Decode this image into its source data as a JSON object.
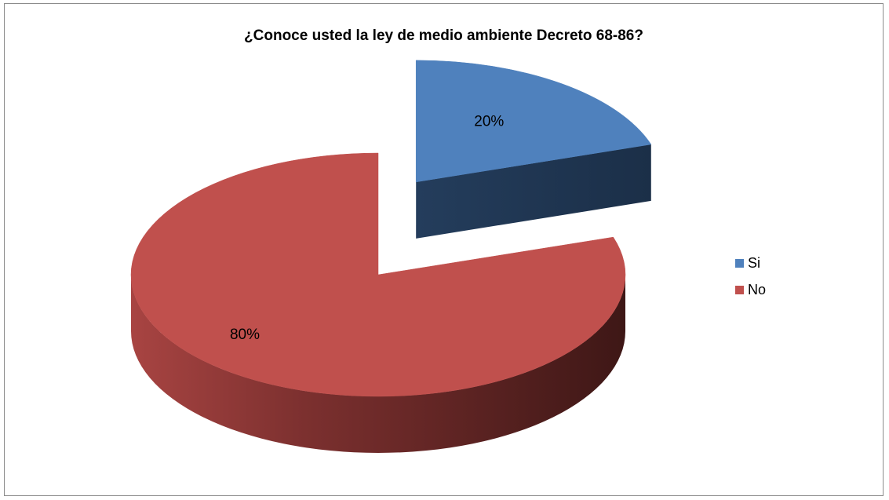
{
  "chart_data": {
    "type": "pie",
    "title": "¿Conoce usted la ley de medio ambiente Decreto 68-86?",
    "categories": [
      "Si",
      "No"
    ],
    "values": [
      20,
      80
    ],
    "data_labels": [
      "20%",
      "80%"
    ],
    "colors": [
      "#4f81bd",
      "#c0504d"
    ],
    "side_colors": [
      "#1f3550",
      "#4d201f"
    ],
    "exploded": "Si",
    "legend_position": "right",
    "style": "3d"
  }
}
